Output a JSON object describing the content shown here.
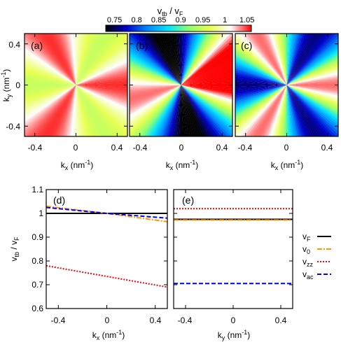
{
  "chart_data": [
    {
      "type": "heatmap",
      "title": "v_tb / v_F",
      "colorbar": {
        "label_main": "v",
        "label_sub": "tb",
        "label_rest": " / v",
        "label_sub2": "F",
        "ticks": [
          "0.75",
          "0.8",
          "0.85",
          "0.9",
          "0.95",
          "1",
          "1.05"
        ],
        "range": [
          0.73,
          1.06
        ],
        "colors": [
          "#000000",
          "#0000cc",
          "#0088ff",
          "#00e5ff",
          "#90ff70",
          "#e8ff50",
          "#ffffff",
          "#ff0000"
        ]
      },
      "panels": [
        {
          "tag": "(a)",
          "mean": 1.0,
          "amp": 0.052,
          "phase_deg": 0,
          "symmetry": 3
        },
        {
          "tag": "(b)",
          "mean": 0.9,
          "amp": 0.18,
          "phase_deg": 15,
          "symmetry": 1
        },
        {
          "tag": "(c)",
          "mean": 0.9,
          "amp": 0.14,
          "phase_deg": 0,
          "symmetry": 3
        }
      ],
      "xlabel": {
        "main": "k",
        "sub": "x",
        "unit": " (nm",
        "sup": "-1",
        "close": ")"
      },
      "ylabel": {
        "main": "k",
        "sub": "y",
        "unit": " (nm",
        "sup": "-1",
        "close": ")"
      },
      "xticks": [
        "-0.4",
        "0",
        "0.4"
      ],
      "yticks": [
        "0.4",
        "0",
        "-0.4"
      ],
      "xlim": [
        -0.5,
        0.5
      ],
      "ylim": [
        -0.5,
        0.5
      ]
    },
    {
      "type": "line",
      "panels": [
        {
          "tag": "(d)",
          "xlabel": {
            "main": "k",
            "sub": "x",
            "unit": " (nm",
            "sup": "-1",
            "close": ")"
          },
          "series": [
            {
              "name": "v_F",
              "x": [
                -0.5,
                0.5
              ],
              "y": [
                1.0,
                1.0
              ]
            },
            {
              "name": "v_0",
              "x": [
                -0.5,
                0.0,
                0.5
              ],
              "y": [
                1.03,
                1.0,
                0.965
              ]
            },
            {
              "name": "v_zz",
              "x": [
                -0.5,
                0.5
              ],
              "y": [
                0.78,
                0.69
              ]
            },
            {
              "name": "v_ac",
              "x": [
                -0.5,
                0.0,
                0.5
              ],
              "y": [
                1.025,
                1.0,
                0.98
              ]
            }
          ]
        },
        {
          "tag": "(e)",
          "xlabel": {
            "main": "k",
            "sub": "y",
            "unit": " (nm",
            "sup": "-1",
            "close": ")"
          },
          "series": [
            {
              "name": "v_F",
              "x": [
                -0.5,
                0.5
              ],
              "y": [
                0.975,
                0.975
              ]
            },
            {
              "name": "v_0",
              "x": [
                -0.5,
                0.5
              ],
              "y": [
                0.972,
                0.972
              ]
            },
            {
              "name": "v_zz",
              "x": [
                -0.5,
                0.5
              ],
              "y": [
                1.02,
                1.02
              ]
            },
            {
              "name": "v_ac",
              "x": [
                -0.5,
                0.5
              ],
              "y": [
                0.705,
                0.705
              ]
            }
          ]
        }
      ],
      "ylabel": {
        "main": "v",
        "sub": "tb",
        "rest": " / v",
        "sub2": "F"
      },
      "xticks": [
        "-0.4",
        "0",
        "0.4"
      ],
      "yticks": [
        "1.1",
        "1",
        "0.9",
        "0.8",
        "0.7",
        "0.6"
      ],
      "yvalues": [
        1.1,
        1.0,
        0.9,
        0.8,
        0.7,
        0.6
      ],
      "xlim": [
        -0.5,
        0.5
      ],
      "ylim": [
        0.6,
        1.1
      ],
      "legend": {
        "placement": "right",
        "entries": [
          {
            "main": "v",
            "sub": "F",
            "color": "#000000",
            "dash": ""
          },
          {
            "main": "v",
            "sub": "0",
            "color": "#ff9900",
            "dash": "7,2,2,2"
          },
          {
            "main": "v",
            "sub": "zz",
            "color": "#ff0000",
            "dash": "2,2"
          },
          {
            "main": "v",
            "sub": "ac",
            "color": "#0000ff",
            "dash": "6,3"
          }
        ]
      },
      "colors": {
        "v_F": "#000000",
        "v_0": "#ff9900",
        "v_zz": "#ff0000",
        "v_ac": "#0000ff"
      }
    }
  ]
}
